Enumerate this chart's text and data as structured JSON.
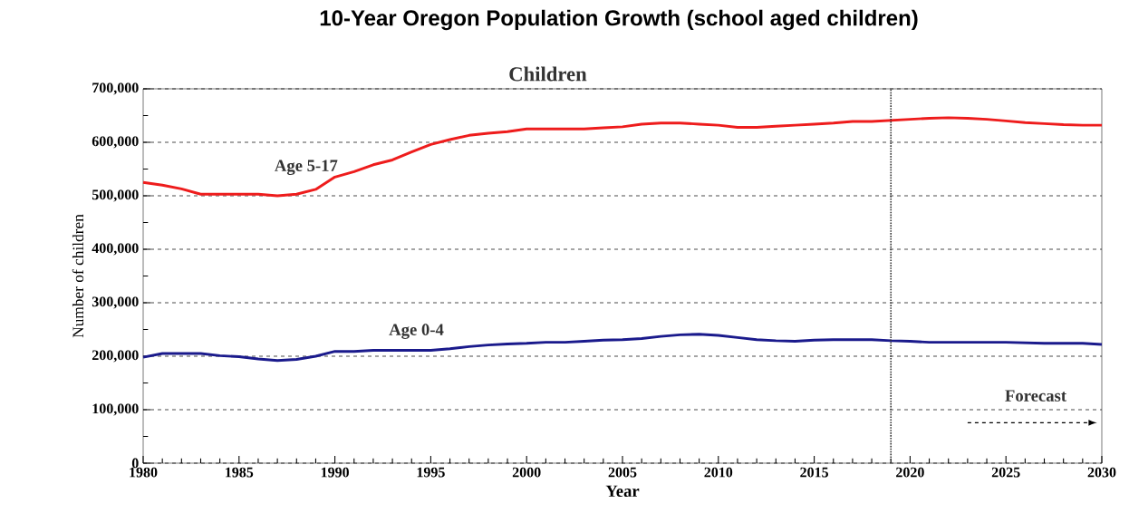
{
  "chart_data": {
    "type": "line",
    "title": "10-Year Oregon Population Growth (school aged children)",
    "subtitle": "Children",
    "xlabel": "Year",
    "ylabel": "Number of children",
    "x": [
      1980,
      1981,
      1982,
      1983,
      1984,
      1985,
      1986,
      1987,
      1988,
      1989,
      1990,
      1991,
      1992,
      1993,
      1994,
      1995,
      1996,
      1997,
      1998,
      1999,
      2000,
      2001,
      2002,
      2003,
      2004,
      2005,
      2006,
      2007,
      2008,
      2009,
      2010,
      2011,
      2012,
      2013,
      2014,
      2015,
      2016,
      2017,
      2018,
      2019,
      2020,
      2021,
      2022,
      2023,
      2024,
      2025,
      2026,
      2027,
      2028,
      2029,
      2030
    ],
    "series": [
      {
        "name": "Age 5-17",
        "color": "#ee1c1c",
        "values": [
          525000,
          520000,
          513000,
          503000,
          503000,
          503000,
          503000,
          500000,
          503000,
          512000,
          535000,
          545000,
          558000,
          567000,
          582000,
          596000,
          605000,
          613000,
          617000,
          620000,
          625000,
          625000,
          625000,
          625000,
          627000,
          629000,
          634000,
          636000,
          636000,
          634000,
          632000,
          628000,
          628000,
          630000,
          632000,
          634000,
          636000,
          639000,
          639000,
          641000,
          643000,
          645000,
          646000,
          645000,
          643000,
          640000,
          637000,
          635000,
          633000,
          632000,
          632000
        ]
      },
      {
        "name": "Age 0-4",
        "color": "#1a1a8c",
        "values": [
          198000,
          205000,
          205000,
          205000,
          201000,
          199000,
          195000,
          192000,
          194000,
          200000,
          209000,
          209000,
          211000,
          211000,
          211000,
          211000,
          214000,
          218000,
          221000,
          223000,
          224000,
          226000,
          226000,
          228000,
          230000,
          231000,
          233000,
          237000,
          240000,
          241000,
          239000,
          235000,
          231000,
          229000,
          228000,
          230000,
          231000,
          231000,
          231000,
          229000,
          228000,
          226000,
          226000,
          226000,
          226000,
          226000,
          225000,
          224000,
          224000,
          224000,
          222000
        ]
      }
    ],
    "xlim": [
      1980,
      2030
    ],
    "xticks": [
      1980,
      1985,
      1990,
      1995,
      2000,
      2005,
      2010,
      2015,
      2020,
      2025,
      2030
    ],
    "ylim": [
      0,
      700000
    ],
    "yticks": [
      {
        "value": 0,
        "label": "0"
      },
      {
        "value": 100000,
        "label": "100,000"
      },
      {
        "value": 200000,
        "label": "200,000"
      },
      {
        "value": 300000,
        "label": "300,000"
      },
      {
        "value": 400000,
        "label": "400,000"
      },
      {
        "value": 500000,
        "label": "500,000"
      },
      {
        "value": 600000,
        "label": "600,000"
      },
      {
        "value": 700000,
        "label": "700,000"
      }
    ],
    "grid": "y",
    "line_style": "solid",
    "ref_lines": [
      {
        "axis": "x",
        "value": 2019,
        "line_style": "dotted"
      }
    ],
    "annotations": [
      "Forecast"
    ]
  }
}
